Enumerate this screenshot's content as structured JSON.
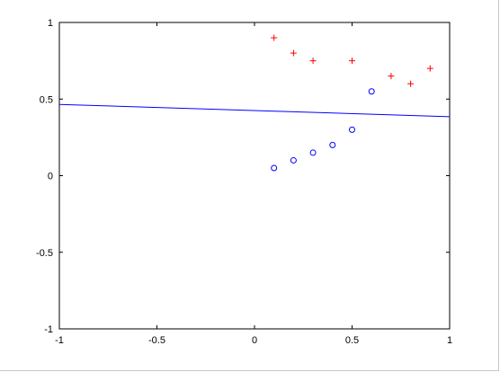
{
  "chart_data": {
    "type": "scatter",
    "title": "",
    "xlabel": "",
    "ylabel": "",
    "xlim": [
      -1,
      1
    ],
    "ylim": [
      -1,
      1
    ],
    "xticks": [
      -1,
      -0.5,
      0,
      0.5,
      1
    ],
    "yticks": [
      -1,
      -0.5,
      0,
      0.5,
      1
    ],
    "xtick_labels": [
      "-1",
      "-0.5",
      "0",
      "0.5",
      "1"
    ],
    "ytick_labels": [
      "-1",
      "-0.5",
      "0",
      "0.5",
      "1"
    ],
    "grid": false,
    "legend": "none",
    "series": [
      {
        "marker": "plus",
        "color": "#ff0000",
        "points": [
          [
            0.1,
            0.9
          ],
          [
            0.2,
            0.8
          ],
          [
            0.3,
            0.75
          ],
          [
            0.5,
            0.75
          ],
          [
            0.7,
            0.65
          ],
          [
            0.8,
            0.6
          ],
          [
            0.9,
            0.7
          ]
        ]
      },
      {
        "marker": "circle",
        "color": "#0000ff",
        "points": [
          [
            0.1,
            0.05
          ],
          [
            0.2,
            0.1
          ],
          [
            0.3,
            0.15
          ],
          [
            0.4,
            0.2
          ],
          [
            0.5,
            0.3
          ],
          [
            0.6,
            0.55
          ]
        ]
      }
    ],
    "lines": [
      {
        "color": "#0000ff",
        "points": [
          [
            -1,
            0.465
          ],
          [
            1,
            0.385
          ]
        ]
      }
    ]
  }
}
